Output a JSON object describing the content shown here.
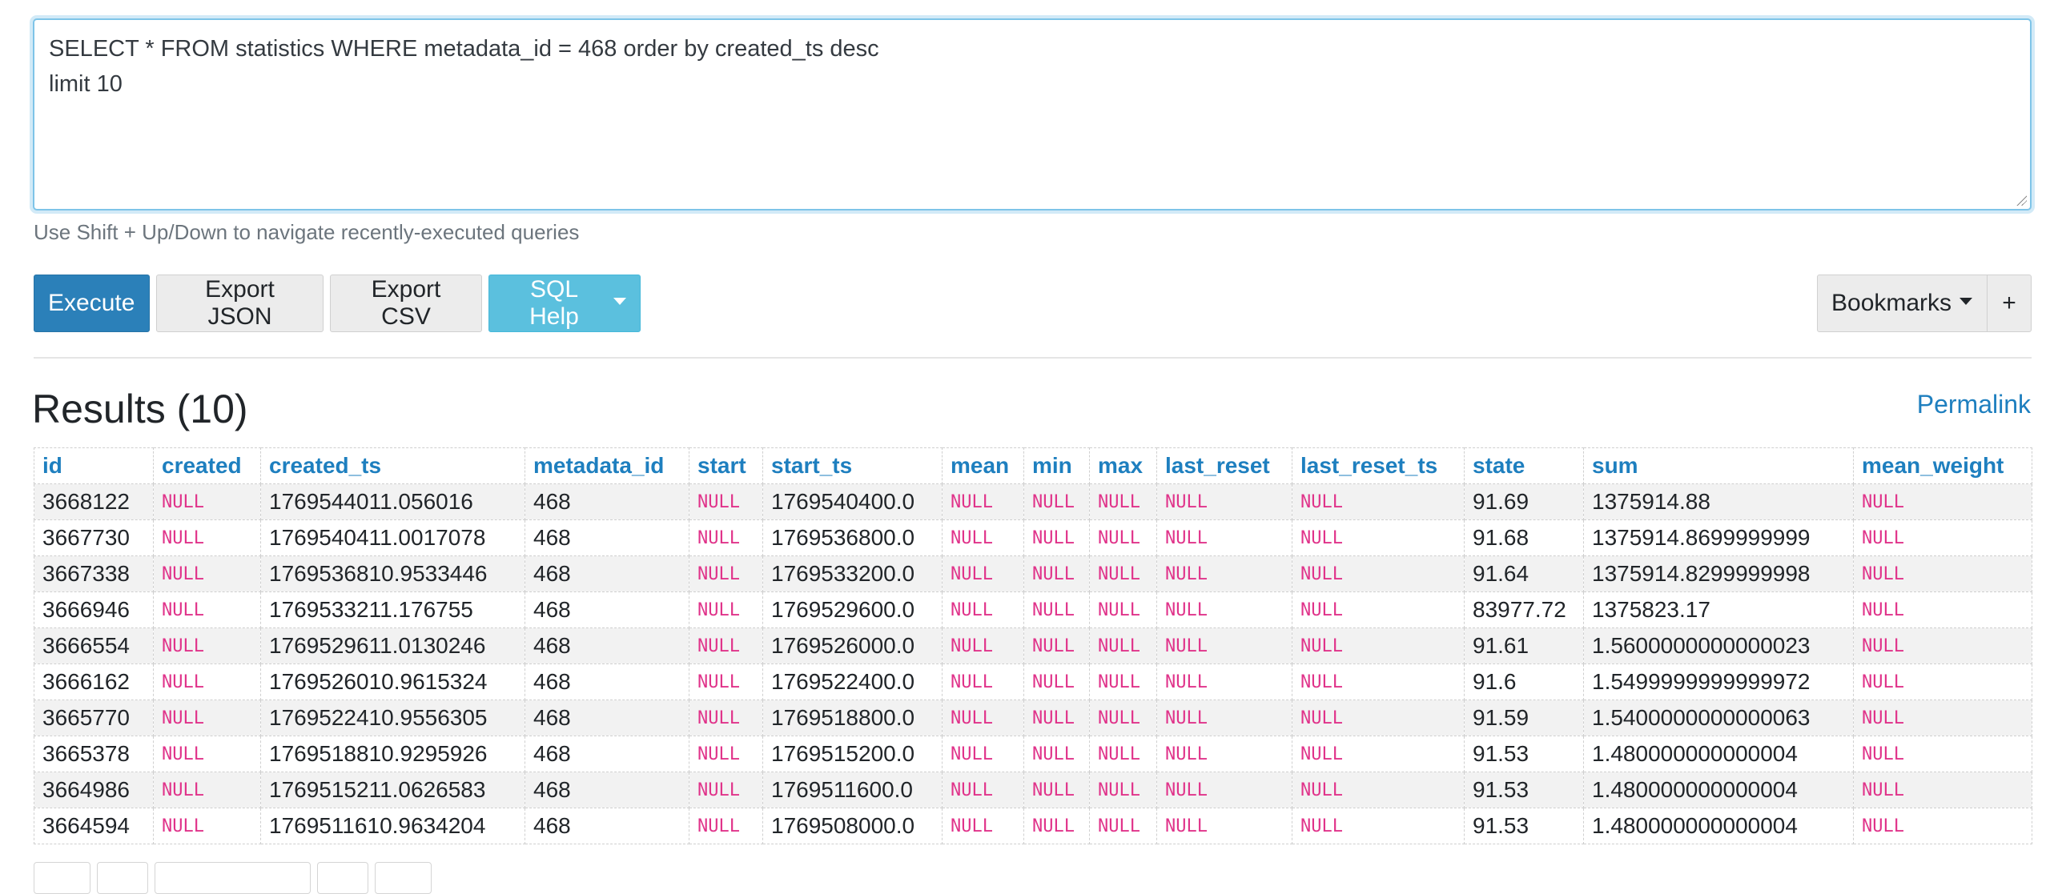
{
  "query": {
    "sql": "SELECT * FROM statistics WHERE metadata_id = 468 order by created_ts desc\nlimit 10",
    "hint": "Use Shift + Up/Down to navigate recently-executed queries"
  },
  "toolbar": {
    "execute": "Execute",
    "export_json": "Export JSON",
    "export_csv": "Export CSV",
    "sql_help": "SQL Help",
    "bookmarks": "Bookmarks",
    "add_bookmark": "+"
  },
  "results": {
    "title": "Results (10)",
    "permalink": "Permalink",
    "columns": [
      "id",
      "created",
      "created_ts",
      "metadata_id",
      "start",
      "start_ts",
      "mean",
      "min",
      "max",
      "last_reset",
      "last_reset_ts",
      "state",
      "sum",
      "mean_weight"
    ],
    "null_text": "NULL",
    "rows": [
      [
        "3668122",
        "NULL",
        "1769544011.056016",
        "468",
        "NULL",
        "1769540400.0",
        "NULL",
        "NULL",
        "NULL",
        "NULL",
        "NULL",
        "91.69",
        "1375914.88",
        "NULL"
      ],
      [
        "3667730",
        "NULL",
        "1769540411.0017078",
        "468",
        "NULL",
        "1769536800.0",
        "NULL",
        "NULL",
        "NULL",
        "NULL",
        "NULL",
        "91.68",
        "1375914.8699999999",
        "NULL"
      ],
      [
        "3667338",
        "NULL",
        "1769536810.9533446",
        "468",
        "NULL",
        "1769533200.0",
        "NULL",
        "NULL",
        "NULL",
        "NULL",
        "NULL",
        "91.64",
        "1375914.8299999998",
        "NULL"
      ],
      [
        "3666946",
        "NULL",
        "1769533211.176755",
        "468",
        "NULL",
        "1769529600.0",
        "NULL",
        "NULL",
        "NULL",
        "NULL",
        "NULL",
        "83977.72",
        "1375823.17",
        "NULL"
      ],
      [
        "3666554",
        "NULL",
        "1769529611.0130246",
        "468",
        "NULL",
        "1769526000.0",
        "NULL",
        "NULL",
        "NULL",
        "NULL",
        "NULL",
        "91.61",
        "1.5600000000000023",
        "NULL"
      ],
      [
        "3666162",
        "NULL",
        "1769526010.9615324",
        "468",
        "NULL",
        "1769522400.0",
        "NULL",
        "NULL",
        "NULL",
        "NULL",
        "NULL",
        "91.6",
        "1.5499999999999972",
        "NULL"
      ],
      [
        "3665770",
        "NULL",
        "1769522410.9556305",
        "468",
        "NULL",
        "1769518800.0",
        "NULL",
        "NULL",
        "NULL",
        "NULL",
        "NULL",
        "91.59",
        "1.5400000000000063",
        "NULL"
      ],
      [
        "3665378",
        "NULL",
        "1769518810.9295926",
        "468",
        "NULL",
        "1769515200.0",
        "NULL",
        "NULL",
        "NULL",
        "NULL",
        "NULL",
        "91.53",
        "1.480000000000004",
        "NULL"
      ],
      [
        "3664986",
        "NULL",
        "1769515211.0626583",
        "468",
        "NULL",
        "1769511600.0",
        "NULL",
        "NULL",
        "NULL",
        "NULL",
        "NULL",
        "91.53",
        "1.480000000000004",
        "NULL"
      ],
      [
        "3664594",
        "NULL",
        "1769511610.9634204",
        "468",
        "NULL",
        "1769508000.0",
        "NULL",
        "NULL",
        "NULL",
        "NULL",
        "NULL",
        "91.53",
        "1.480000000000004",
        "NULL"
      ]
    ]
  },
  "colors": {
    "execute_bg": "#2b80b9",
    "help_bg": "#5bc0de",
    "header_text": "#1e7fbf",
    "null_text": "#e0338a"
  }
}
